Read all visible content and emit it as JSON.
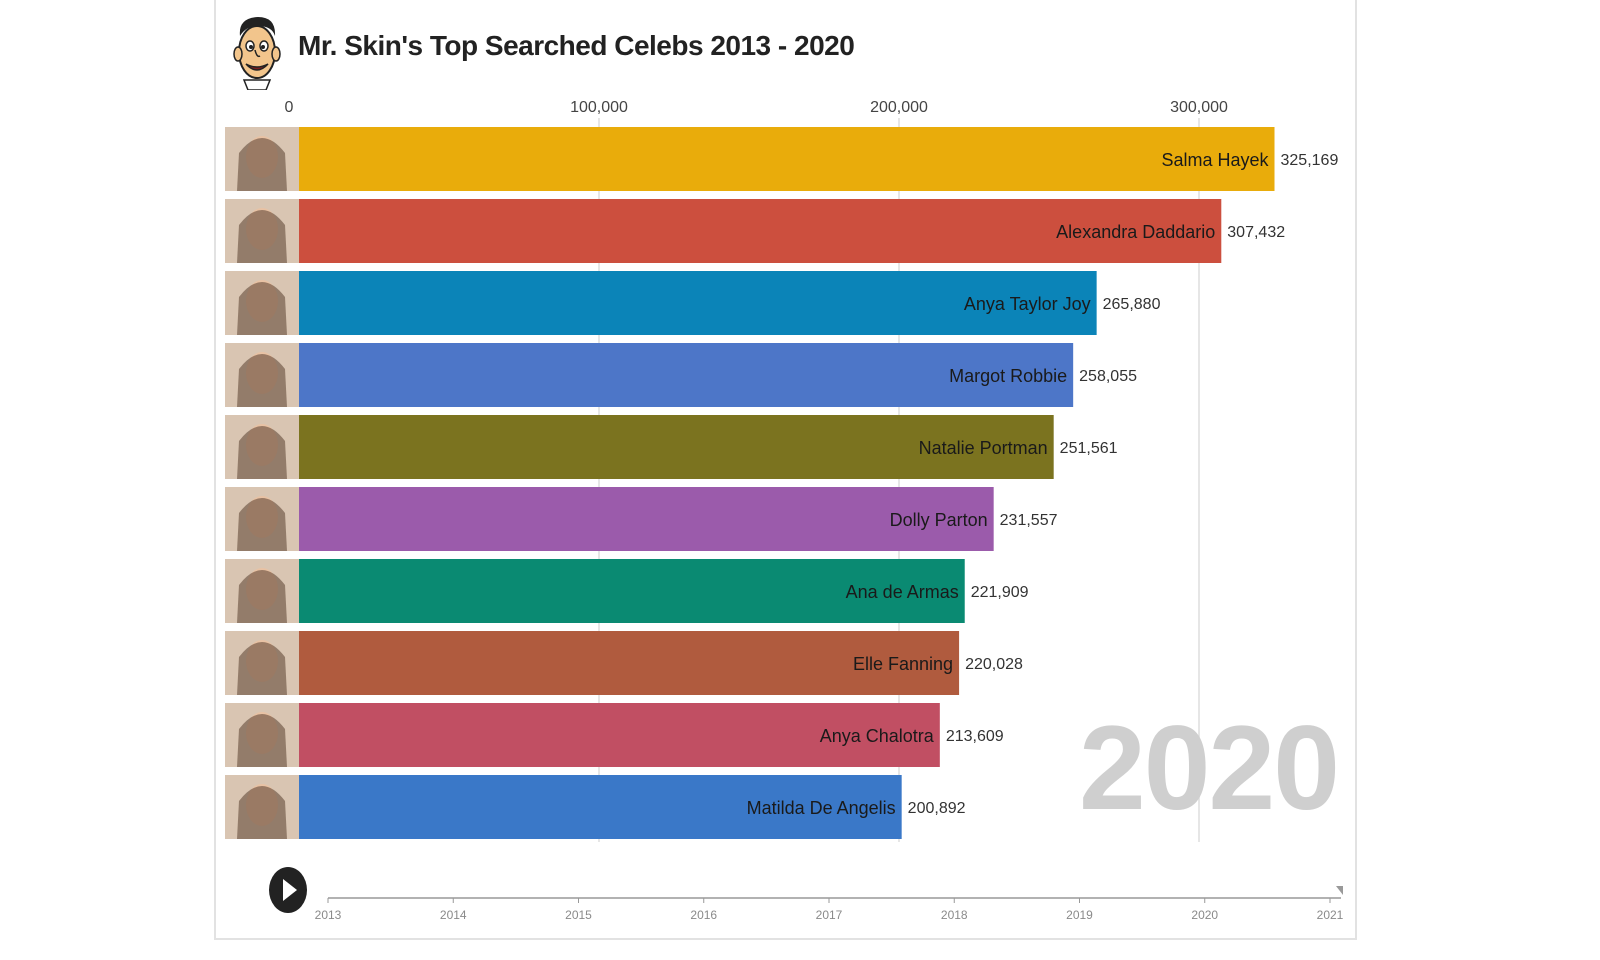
{
  "header": {
    "title": "Mr. Skin's Top Searched Celebs 2013 - 2020"
  },
  "controls": {
    "play_icon": "play-icon",
    "current_year": "2020"
  },
  "chart_data": {
    "type": "bar",
    "orientation": "horizontal",
    "title": "Mr. Skin's Top Searched Celebs 2013 - 2020",
    "xlim": [
      0,
      350000
    ],
    "x_ticks": [
      "0",
      "100,000",
      "200,000",
      "300,000"
    ],
    "x_tick_values": [
      0,
      100000,
      200000,
      300000
    ],
    "grid": true,
    "categories": [
      "Salma Hayek",
      "Alexandra Daddario",
      "Anya Taylor Joy",
      "Margot Robbie",
      "Natalie Portman",
      "Dolly Parton",
      "Ana de Armas",
      "Elle Fanning",
      "Anya Chalotra",
      "Matilda De Angelis"
    ],
    "values": [
      325169,
      307432,
      265880,
      258055,
      251561,
      231557,
      221909,
      220028,
      213609,
      200892
    ],
    "value_labels": [
      "325,169",
      "307,432",
      "265,880",
      "258,055",
      "251,561",
      "231,557",
      "221,909",
      "220,028",
      "213,609",
      "200,892"
    ],
    "colors": [
      "#e9ac0b",
      "#cc4f3e",
      "#0b84b8",
      "#4d76c8",
      "#7b731f",
      "#9b5bab",
      "#0a8a72",
      "#b05b3e",
      "#c14f63",
      "#3a78c8"
    ],
    "timeline": {
      "years": [
        "2013",
        "2014",
        "2015",
        "2016",
        "2017",
        "2018",
        "2019",
        "2020",
        "2021"
      ],
      "current": "2020"
    }
  }
}
